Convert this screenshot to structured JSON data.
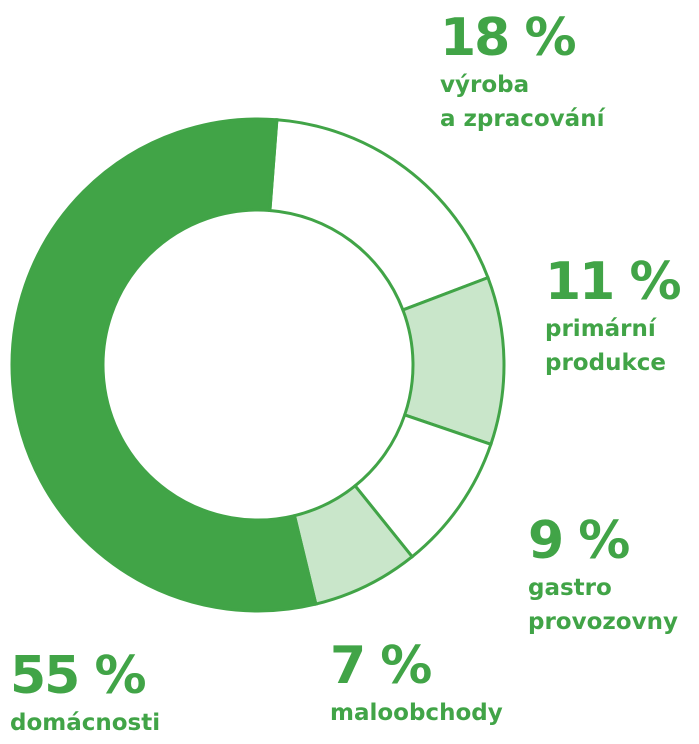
{
  "chart_data": {
    "type": "donut",
    "categories": [
      "výroba\na zpracování",
      "primární\nprodukce",
      "gastro\nprovozovny",
      "maloobchody",
      "domácnosti"
    ],
    "values": [
      18,
      11,
      9,
      7,
      55
    ],
    "value_labels": [
      "18 %",
      "11 %",
      "9 %",
      "7 %",
      "55 %"
    ],
    "colors": [
      "#ffffff",
      "#c9e6ca",
      "#ffffff",
      "#c9e6ca",
      "#41a447"
    ]
  }
}
